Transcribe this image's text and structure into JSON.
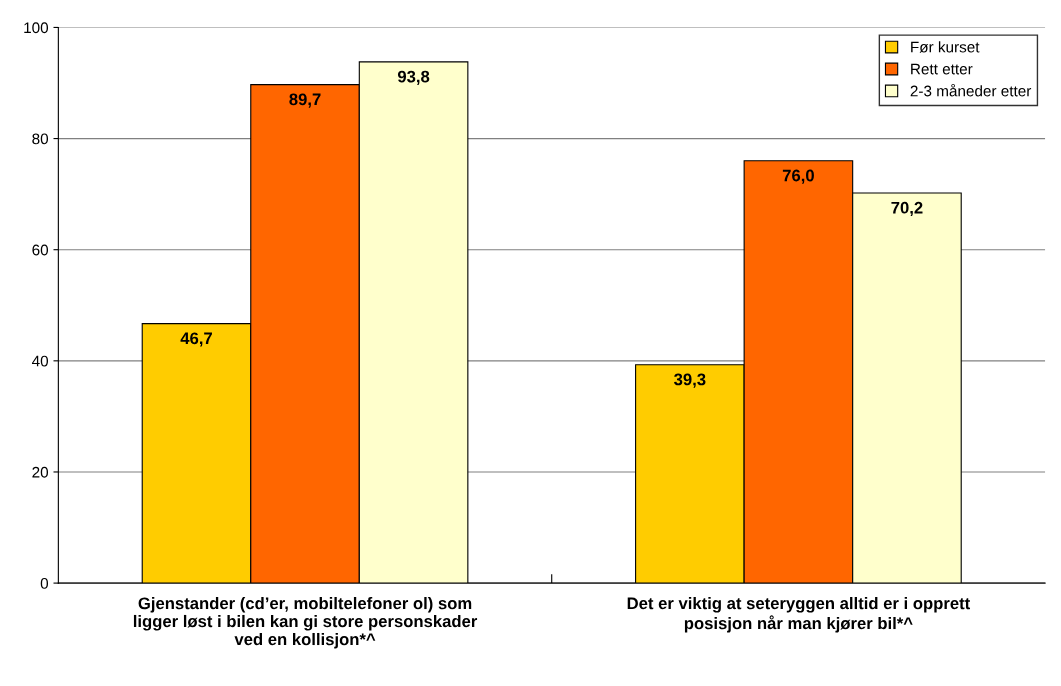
{
  "chart_data": {
    "type": "bar",
    "categories": [
      "Gjenstander (cd’er, mobiltelefoner ol) som\nligger løst i bilen kan gi store personskader\nved en kollisjon*^",
      "Det er viktig at seteryggen alltid er i opprett\nposisjon når man kjører bil*^"
    ],
    "series": [
      {
        "name": "Før kurset",
        "color": "#ffcc00",
        "values": [
          46.7,
          39.3
        ],
        "value_labels": [
          "46,7",
          "39,3"
        ]
      },
      {
        "name": "Rett etter",
        "color": "#ff6600",
        "values": [
          89.7,
          76.0
        ],
        "value_labels": [
          "89,7",
          "76,0"
        ]
      },
      {
        "name": "2-3 måneder etter",
        "color": "#ffffcc",
        "values": [
          93.8,
          70.2
        ],
        "value_labels": [
          "93,8",
          "70,2"
        ]
      }
    ],
    "ylim": [
      0,
      100
    ],
    "yticks": [
      0,
      20,
      40,
      60,
      80,
      100
    ],
    "grid": "y",
    "legend": "top right"
  }
}
